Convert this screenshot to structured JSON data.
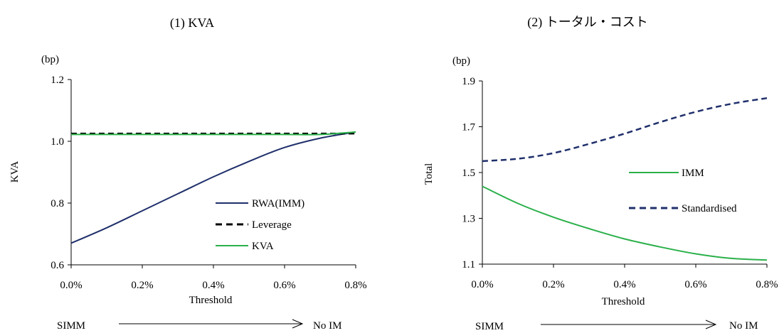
{
  "chart_data": [
    {
      "type": "line",
      "title": "(1) KVA",
      "unit_label": "(bp)",
      "xlabel": "Threshold",
      "ylabel": "KVA",
      "x_ticks": [
        "0.0%",
        "0.2%",
        "0.4%",
        "0.6%",
        "0.8%"
      ],
      "y_ticks": [
        "0.6",
        "0.8",
        "1.0",
        "1.2"
      ],
      "xlim": [
        0,
        0.8
      ],
      "ylim": [
        0.6,
        1.2
      ],
      "legend_position": "bottom-right",
      "series": [
        {
          "name": "RWA(IMM)",
          "color": "#1f2f6b",
          "dash": "solid",
          "x": [
            0.0,
            0.1,
            0.2,
            0.3,
            0.4,
            0.5,
            0.6,
            0.7,
            0.8
          ],
          "values": [
            0.67,
            0.72,
            0.775,
            0.83,
            0.885,
            0.935,
            0.98,
            1.01,
            1.03
          ]
        },
        {
          "name": "Leverage",
          "color": "#000000",
          "dash": "dashed",
          "x": [
            0.0,
            0.8
          ],
          "values": [
            1.025,
            1.025
          ]
        },
        {
          "name": "KVA",
          "color": "#2bb04a",
          "dash": "solid",
          "x": [
            0.0,
            0.1,
            0.2,
            0.3,
            0.4,
            0.5,
            0.6,
            0.7,
            0.8
          ],
          "values": [
            1.022,
            1.022,
            1.022,
            1.022,
            1.022,
            1.022,
            1.022,
            1.022,
            1.03
          ]
        }
      ],
      "bottom_arrow": {
        "left_label": "SIMM",
        "right_label": "No IM"
      }
    },
    {
      "type": "line",
      "title": "(2) トータル・コスト",
      "unit_label": "(bp)",
      "xlabel": "Threshold",
      "ylabel": "Total",
      "x_ticks": [
        "0.0%",
        "0.2%",
        "0.4%",
        "0.6%",
        "0.8%"
      ],
      "y_ticks": [
        "1.1",
        "1.3",
        "1.5",
        "1.7",
        "1.9"
      ],
      "xlim": [
        0,
        0.8
      ],
      "ylim": [
        1.1,
        1.9
      ],
      "legend_position": "right",
      "series": [
        {
          "name": "IMM",
          "color": "#2bb04a",
          "dash": "solid",
          "x": [
            0.0,
            0.1,
            0.2,
            0.3,
            0.4,
            0.5,
            0.6,
            0.7,
            0.8
          ],
          "values": [
            1.44,
            1.365,
            1.305,
            1.255,
            1.21,
            1.175,
            1.145,
            1.125,
            1.118
          ]
        },
        {
          "name": "Standardised",
          "color": "#1f2f6b",
          "dash": "dashed",
          "x": [
            0.0,
            0.1,
            0.2,
            0.3,
            0.4,
            0.5,
            0.6,
            0.7,
            0.8
          ],
          "values": [
            1.55,
            1.56,
            1.585,
            1.625,
            1.67,
            1.72,
            1.765,
            1.8,
            1.825
          ]
        }
      ],
      "bottom_arrow": {
        "left_label": "SIMM",
        "right_label": "No IM"
      }
    }
  ]
}
